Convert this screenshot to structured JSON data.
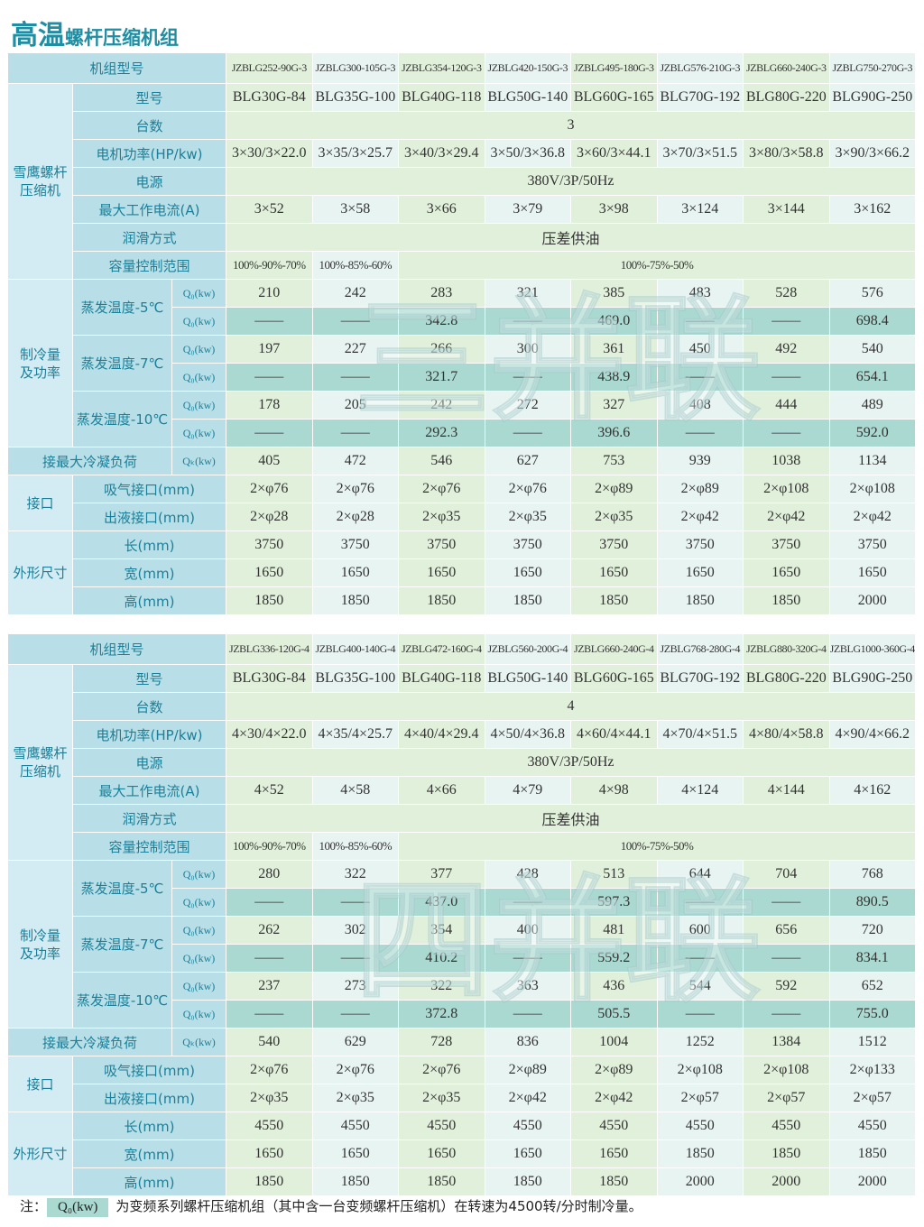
{
  "title": {
    "main": "高温",
    "sub": "螺杆压缩机组"
  },
  "tables": [
    {
      "watermark": "三并联",
      "header": {
        "label": "机组型号",
        "models": [
          "JZBLG252-90G-3",
          "JZBLG300-105G-3",
          "JZBLG354-120G-3",
          "JZBLG420-150G-3",
          "JZBLG495-180G-3",
          "JZBLG576-210G-3",
          "JZBLG660-240G-3",
          "JZBLG750-270G-3"
        ]
      },
      "groups": [
        {
          "label": [
            "雪鹰螺杆",
            "压缩机"
          ],
          "items": [
            {
              "label": "型号",
              "lines": [
                {
                  "cells": [
                    "BLG30G-84",
                    "BLG35G-100",
                    "BLG40G-118",
                    "BLG50G-140",
                    "BLG60G-165",
                    "BLG70G-192",
                    "BLG80G-220",
                    "BLG90G-250"
                  ]
                }
              ]
            },
            {
              "label": "台数",
              "lines": [
                {
                  "cells": [
                    "3"
                  ]
                }
              ]
            },
            {
              "label": "电机功率(HP/kw)",
              "lines": [
                {
                  "cells": [
                    "3×30/3×22.0",
                    "3×35/3×25.7",
                    "3×40/3×29.4",
                    "3×50/3×36.8",
                    "3×60/3×44.1",
                    "3×70/3×51.5",
                    "3×80/3×58.8",
                    "3×90/3×66.2"
                  ]
                }
              ]
            },
            {
              "label": "电源",
              "lines": [
                {
                  "cells": [
                    "380V/3P/50Hz"
                  ]
                }
              ]
            },
            {
              "label": "最大工作电流(A)",
              "lines": [
                {
                  "cells": [
                    "3×52",
                    "3×58",
                    "3×66",
                    "3×79",
                    "3×98",
                    "3×124",
                    "3×144",
                    "3×162"
                  ]
                }
              ]
            },
            {
              "label": "润滑方式",
              "lines": [
                {
                  "cells": [
                    "压差供油"
                  ]
                }
              ]
            },
            {
              "label": "容量控制范围",
              "lines": [
                {
                  "cells": [
                    "100%-90%-70%",
                    "100%-85%-60%",
                    "100%-75%-50%"
                  ]
                }
              ]
            }
          ]
        },
        {
          "label": [
            "制冷量",
            "及功率"
          ],
          "items": [
            {
              "label": "蒸发温度-5℃",
              "lines": [
                {
                  "unit": "Q₀(kw)",
                  "cells": [
                    "210",
                    "242",
                    "283",
                    "321",
                    "385",
                    "483",
                    "528",
                    "576"
                  ]
                },
                {
                  "unit": "Q₀(kw)",
                  "cells": [
                    "——",
                    "——",
                    "342.8",
                    "——",
                    "469.0",
                    "——",
                    "——",
                    "698.4"
                  ]
                }
              ]
            },
            {
              "label": "蒸发温度-7℃",
              "lines": [
                {
                  "unit": "Q₀(kw)",
                  "cells": [
                    "197",
                    "227",
                    "266",
                    "300",
                    "361",
                    "450",
                    "492",
                    "540"
                  ]
                },
                {
                  "unit": "Q₀(kw)",
                  "cells": [
                    "——",
                    "——",
                    "321.7",
                    "——",
                    "438.9",
                    "——",
                    "——",
                    "654.1"
                  ]
                }
              ]
            },
            {
              "label": "蒸发温度-10℃",
              "lines": [
                {
                  "unit": "Q₀(kw)",
                  "cells": [
                    "178",
                    "205",
                    "242",
                    "272",
                    "327",
                    "408",
                    "444",
                    "489"
                  ]
                },
                {
                  "unit": "Q₀(kw)",
                  "cells": [
                    "——",
                    "——",
                    "292.3",
                    "——",
                    "396.6",
                    "——",
                    "——",
                    "592.0"
                  ]
                }
              ]
            }
          ]
        },
        {
          "items": [
            {
              "label": "接最大冷凝负荷",
              "lines": [
                {
                  "unit": "Qₖ(kw)",
                  "cells": [
                    "405",
                    "472",
                    "546",
                    "627",
                    "753",
                    "939",
                    "1038",
                    "1134"
                  ]
                }
              ]
            }
          ]
        },
        {
          "label": [
            "接口"
          ],
          "items": [
            {
              "label": "吸气接口(mm)",
              "lines": [
                {
                  "cells": [
                    "2×φ76",
                    "2×φ76",
                    "2×φ76",
                    "2×φ76",
                    "2×φ89",
                    "2×φ89",
                    "2×φ108",
                    "2×φ108"
                  ]
                }
              ]
            },
            {
              "label": "出液接口(mm)",
              "lines": [
                {
                  "cells": [
                    "2×φ28",
                    "2×φ28",
                    "2×φ35",
                    "2×φ35",
                    "2×φ35",
                    "2×φ42",
                    "2×φ42",
                    "2×φ42"
                  ]
                }
              ]
            }
          ]
        },
        {
          "label": [
            "外形尺寸"
          ],
          "items": [
            {
              "label": "长(mm)",
              "lines": [
                {
                  "cells": [
                    "3750",
                    "3750",
                    "3750",
                    "3750",
                    "3750",
                    "3750",
                    "3750",
                    "3750"
                  ]
                }
              ]
            },
            {
              "label": "宽(mm)",
              "lines": [
                {
                  "cells": [
                    "1650",
                    "1650",
                    "1650",
                    "1650",
                    "1650",
                    "1650",
                    "1650",
                    "1650"
                  ]
                }
              ]
            },
            {
              "label": "高(mm)",
              "lines": [
                {
                  "cells": [
                    "1850",
                    "1850",
                    "1850",
                    "1850",
                    "1850",
                    "1850",
                    "1850",
                    "2000"
                  ]
                }
              ]
            }
          ]
        }
      ]
    },
    {
      "watermark": "四并联",
      "header": {
        "label": "机组型号",
        "models": [
          "JZBLG336-120G-4",
          "JZBLG400-140G-4",
          "JZBLG472-160G-4",
          "JZBLG560-200G-4",
          "JZBLG660-240G-4",
          "JZBLG768-280G-4",
          "JZBLG880-320G-4",
          "JZBLG1000-360G-4"
        ]
      },
      "groups": [
        {
          "label": [
            "雪鹰螺杆",
            "压缩机"
          ],
          "items": [
            {
              "label": "型号",
              "lines": [
                {
                  "cells": [
                    "BLG30G-84",
                    "BLG35G-100",
                    "BLG40G-118",
                    "BLG50G-140",
                    "BLG60G-165",
                    "BLG70G-192",
                    "BLG80G-220",
                    "BLG90G-250"
                  ]
                }
              ]
            },
            {
              "label": "台数",
              "lines": [
                {
                  "cells": [
                    "4"
                  ]
                }
              ]
            },
            {
              "label": "电机功率(HP/kw)",
              "lines": [
                {
                  "cells": [
                    "4×30/4×22.0",
                    "4×35/4×25.7",
                    "4×40/4×29.4",
                    "4×50/4×36.8",
                    "4×60/4×44.1",
                    "4×70/4×51.5",
                    "4×80/4×58.8",
                    "4×90/4×66.2"
                  ]
                }
              ]
            },
            {
              "label": "电源",
              "lines": [
                {
                  "cells": [
                    "380V/3P/50Hz"
                  ]
                }
              ]
            },
            {
              "label": "最大工作电流(A)",
              "lines": [
                {
                  "cells": [
                    "4×52",
                    "4×58",
                    "4×66",
                    "4×79",
                    "4×98",
                    "4×124",
                    "4×144",
                    "4×162"
                  ]
                }
              ]
            },
            {
              "label": "润滑方式",
              "lines": [
                {
                  "cells": [
                    "压差供油"
                  ]
                }
              ]
            },
            {
              "label": "容量控制范围",
              "lines": [
                {
                  "cells": [
                    "100%-90%-70%",
                    "100%-85%-60%",
                    "100%-75%-50%"
                  ]
                }
              ]
            }
          ]
        },
        {
          "label": [
            "制冷量",
            "及功率"
          ],
          "items": [
            {
              "label": "蒸发温度-5℃",
              "lines": [
                {
                  "unit": "Q₀(kw)",
                  "cells": [
                    "280",
                    "322",
                    "377",
                    "428",
                    "513",
                    "644",
                    "704",
                    "768"
                  ]
                },
                {
                  "unit": "Q₀(kw)",
                  "cells": [
                    "——",
                    "——",
                    "437.0",
                    "——",
                    "597.3",
                    "——",
                    "——",
                    "890.5"
                  ]
                }
              ]
            },
            {
              "label": "蒸发温度-7℃",
              "lines": [
                {
                  "unit": "Q₀(kw)",
                  "cells": [
                    "262",
                    "302",
                    "354",
                    "400",
                    "481",
                    "600",
                    "656",
                    "720"
                  ]
                },
                {
                  "unit": "Q₀(kw)",
                  "cells": [
                    "——",
                    "——",
                    "410.2",
                    "——",
                    "559.2",
                    "——",
                    "——",
                    "834.1"
                  ]
                }
              ]
            },
            {
              "label": "蒸发温度-10℃",
              "lines": [
                {
                  "unit": "Q₀(kw)",
                  "cells": [
                    "237",
                    "273",
                    "322",
                    "363",
                    "436",
                    "544",
                    "592",
                    "652"
                  ]
                },
                {
                  "unit": "Q₀(kw)",
                  "cells": [
                    "——",
                    "——",
                    "372.8",
                    "——",
                    "505.5",
                    "——",
                    "——",
                    "755.0"
                  ]
                }
              ]
            }
          ]
        },
        {
          "items": [
            {
              "label": "接最大冷凝负荷",
              "lines": [
                {
                  "unit": "Qₖ(kw)",
                  "cells": [
                    "540",
                    "629",
                    "728",
                    "836",
                    "1004",
                    "1252",
                    "1384",
                    "1512"
                  ]
                }
              ]
            }
          ]
        },
        {
          "label": [
            "接口"
          ],
          "items": [
            {
              "label": "吸气接口(mm)",
              "lines": [
                {
                  "cells": [
                    "2×φ76",
                    "2×φ76",
                    "2×φ76",
                    "2×φ89",
                    "2×φ89",
                    "2×φ108",
                    "2×φ108",
                    "2×φ133"
                  ]
                }
              ]
            },
            {
              "label": "出液接口(mm)",
              "lines": [
                {
                  "cells": [
                    "2×φ35",
                    "2×φ35",
                    "2×φ35",
                    "2×φ42",
                    "2×φ42",
                    "2×φ57",
                    "2×φ57",
                    "2×φ57"
                  ]
                }
              ]
            }
          ]
        },
        {
          "label": [
            "外形尺寸"
          ],
          "items": [
            {
              "label": "长(mm)",
              "lines": [
                {
                  "cells": [
                    "4550",
                    "4550",
                    "4550",
                    "4550",
                    "4550",
                    "4550",
                    "4550",
                    "4550"
                  ]
                }
              ]
            },
            {
              "label": "宽(mm)",
              "lines": [
                {
                  "cells": [
                    "1650",
                    "1650",
                    "1650",
                    "1650",
                    "1650",
                    "1850",
                    "1850",
                    "1850"
                  ]
                }
              ]
            },
            {
              "label": "高(mm)",
              "lines": [
                {
                  "cells": [
                    "1850",
                    "1850",
                    "1850",
                    "1850",
                    "1850",
                    "2000",
                    "2000",
                    "2000"
                  ]
                }
              ]
            }
          ]
        }
      ]
    }
  ],
  "note": {
    "prefix": "注：",
    "symbol": "Q₀(kw)",
    "text": "为变频系列螺杆压缩机组（其中含一台变频螺杆压缩机）在转速为4500转/分时制冷量。"
  }
}
